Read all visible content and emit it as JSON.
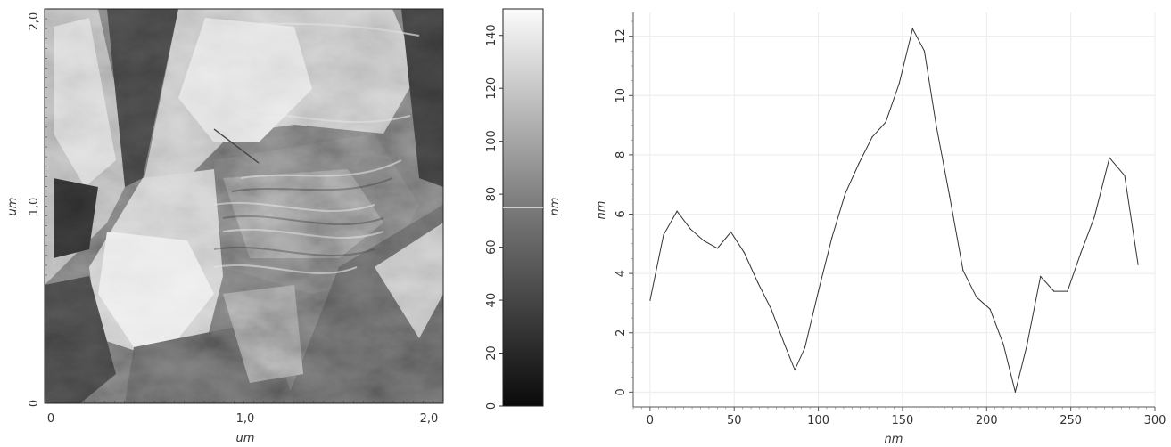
{
  "afm_image": {
    "x_ticks": [
      "0",
      "1,0",
      "2,0"
    ],
    "y_ticks": [
      "0",
      "1,0",
      "2,0"
    ],
    "x_unit": "um",
    "y_unit": "um"
  },
  "colorbar": {
    "ticks": [
      "0",
      "20",
      "40",
      "60",
      "80",
      "100",
      "120",
      "140"
    ],
    "unit": "nm",
    "range": [
      0,
      150
    ],
    "marker_value": 75
  },
  "chart_data": [
    {
      "type": "line",
      "title": "",
      "xlabel": "nm",
      "ylabel": "nm",
      "xlim": [
        -10,
        300
      ],
      "ylim": [
        -0.5,
        12.8
      ],
      "grid": true,
      "x_ticks": [
        0,
        50,
        100,
        150,
        200,
        250,
        300
      ],
      "y_ticks": [
        0,
        2,
        4,
        6,
        8,
        10,
        12
      ],
      "x": [
        0,
        8,
        16,
        24,
        32,
        40,
        48,
        56,
        64,
        72,
        80,
        86,
        92,
        100,
        108,
        116,
        124,
        132,
        140,
        148,
        156,
        163,
        170,
        178,
        186,
        194,
        202,
        210,
        217,
        224,
        232,
        240,
        248,
        256,
        264,
        273,
        282,
        290
      ],
      "values": [
        3.1,
        5.3,
        6.1,
        5.5,
        5.1,
        4.85,
        5.4,
        4.7,
        3.7,
        2.8,
        1.6,
        0.75,
        1.5,
        3.4,
        5.2,
        6.7,
        7.7,
        8.6,
        9.1,
        10.4,
        12.25,
        11.5,
        9.0,
        6.6,
        4.1,
        3.2,
        2.8,
        1.6,
        0.0,
        1.6,
        3.9,
        3.4,
        3.4,
        4.7,
        5.9,
        7.9,
        7.3,
        4.3
      ]
    }
  ]
}
